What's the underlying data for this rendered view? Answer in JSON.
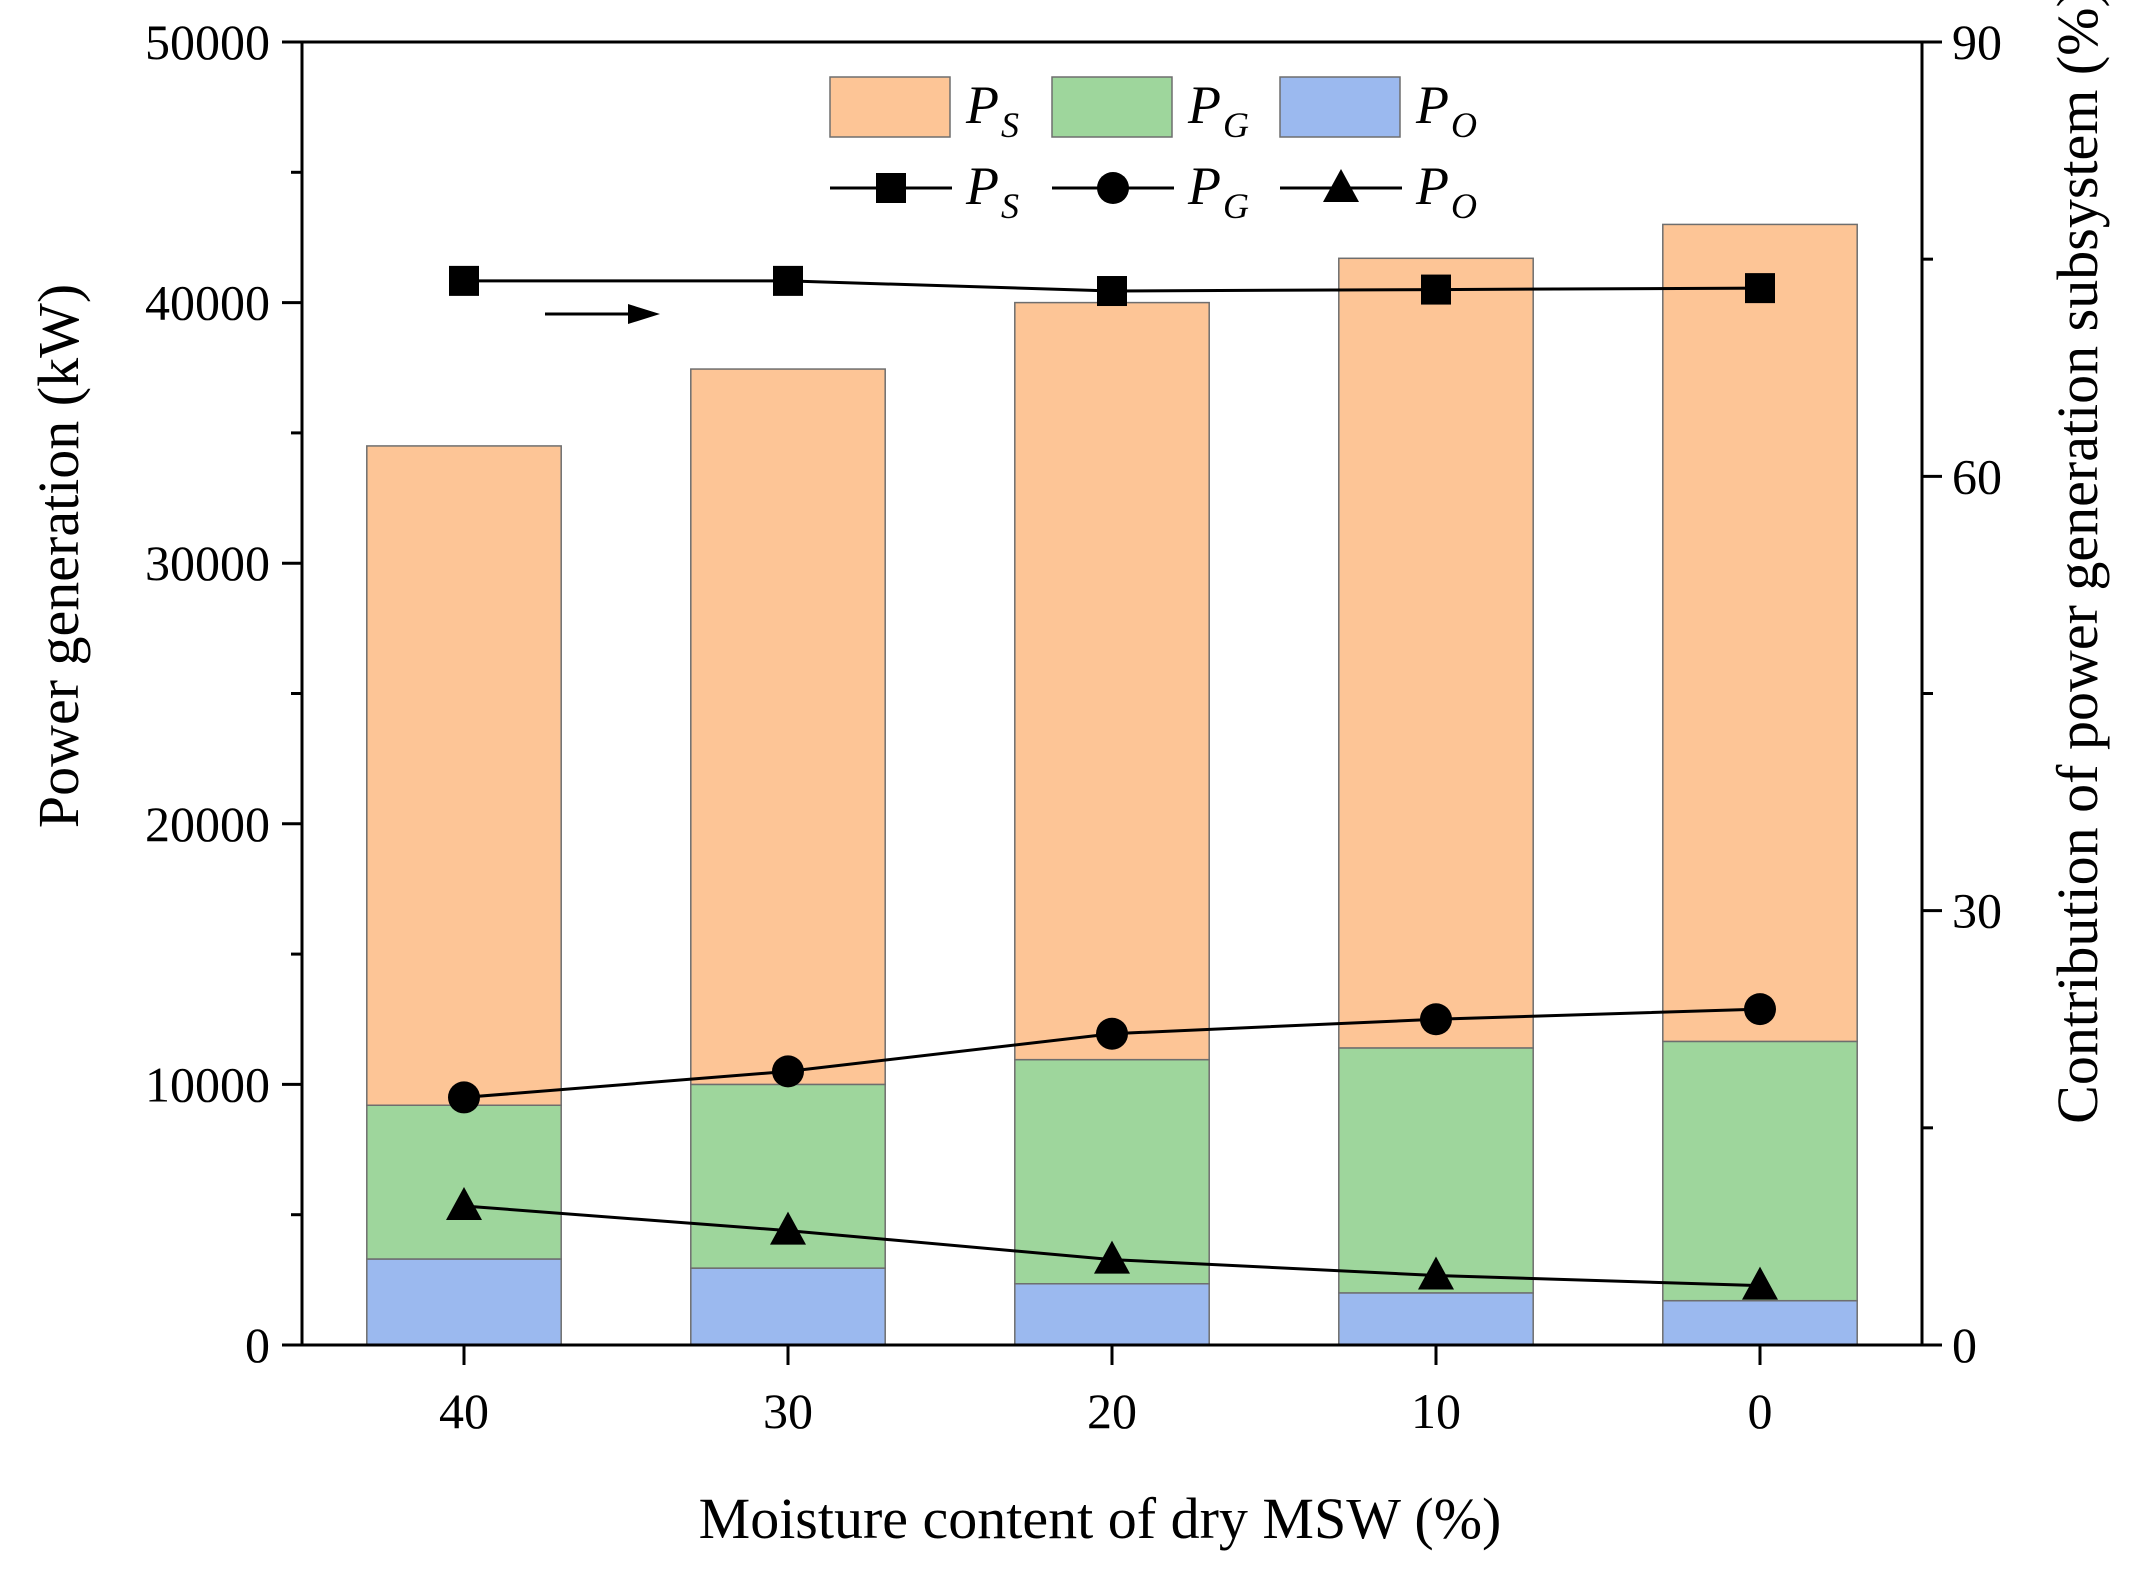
{
  "chart_data": {
    "type": "bar",
    "subtype": "stacked-bar-with-lines",
    "title": "",
    "xlabel": "Moisture content of dry MSW (%)",
    "ylabel": "Power generation (kW)",
    "y2label": "Contribution of power generation subsystem (%)",
    "categories": [
      "40",
      "30",
      "20",
      "10",
      "0"
    ],
    "ylim": [
      0,
      50000
    ],
    "y2lim": [
      0,
      90
    ],
    "yticks": [
      "0",
      "10000",
      "20000",
      "30000",
      "40000",
      "50000"
    ],
    "y2ticks": [
      "0",
      "30",
      "60",
      "90"
    ],
    "bar_series": [
      {
        "name": "P",
        "sub": "O",
        "color": "#9bb9ef",
        "values": [
          3300,
          2950,
          2350,
          2000,
          1700
        ]
      },
      {
        "name": "P",
        "sub": "G",
        "color": "#9ed69c",
        "values": [
          5900,
          7050,
          8600,
          9400,
          9950
        ]
      },
      {
        "name": "P",
        "sub": "S",
        "color": "#fdc596",
        "values": [
          25300,
          27450,
          29050,
          30300,
          31350
        ]
      }
    ],
    "line_series": [
      {
        "name": "P",
        "sub": "S",
        "marker": "square",
        "values": [
          73.5,
          73.5,
          72.8,
          72.9,
          73.0
        ]
      },
      {
        "name": "P",
        "sub": "G",
        "marker": "circle",
        "values": [
          17.1,
          18.9,
          21.5,
          22.5,
          23.2
        ]
      },
      {
        "name": "P",
        "sub": "O",
        "marker": "triangle",
        "values": [
          9.6,
          7.9,
          5.9,
          4.8,
          4.1
        ]
      }
    ],
    "annotation": "arrow pointing right toward right axis (lines use right axis)",
    "legend_position": "top-center"
  }
}
